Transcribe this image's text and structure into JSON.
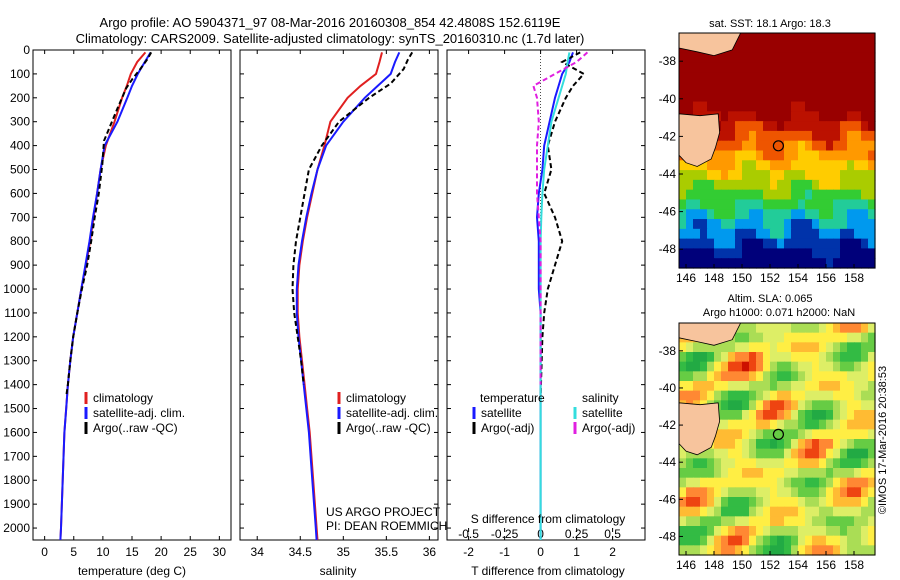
{
  "header": {
    "line1": "Argo profile: AO 5904371_97 08-Mar-2016 20160308_854 42.4808S 152.6119E",
    "line2": "Climatology: CARS2009. Satellite-adjusted climatology: synTS_20160310.nc (1.7d later)"
  },
  "chart_data": [
    {
      "type": "line",
      "name": "temperature-panel",
      "xlabel": "temperature (deg C)",
      "xlim": [
        -2,
        32
      ],
      "ylim": [
        2050,
        0
      ],
      "xticks": [
        0,
        5,
        10,
        15,
        20,
        25,
        30
      ],
      "yticks": [
        0,
        100,
        200,
        300,
        400,
        500,
        600,
        700,
        800,
        900,
        1000,
        1100,
        1200,
        1300,
        1400,
        1500,
        1600,
        1700,
        1800,
        1900,
        2000
      ],
      "legend": [
        "climatology",
        "satellite-adj. clim.",
        "Argo(..raw -QC)"
      ],
      "series": [
        {
          "name": "climatology",
          "color": "#e02020",
          "style": "solid",
          "x": [
            17.3,
            15.9,
            14.8,
            14.1,
            13.3,
            12.0,
            10.5,
            9.6,
            9.0,
            8.4,
            7.8,
            7.1,
            6.3,
            5.6,
            4.9,
            4.4,
            4.0,
            3.7,
            3.4,
            3.1,
            2.8,
            2.7
          ],
          "y": [
            10,
            50,
            100,
            150,
            200,
            300,
            400,
            500,
            600,
            700,
            800,
            900,
            1000,
            1100,
            1200,
            1300,
            1400,
            1500,
            1600,
            1800,
            2000,
            2050
          ]
        },
        {
          "name": "satellite-adj. clim.",
          "color": "#1a1aff",
          "style": "solid",
          "x": [
            18.2,
            17.2,
            16.0,
            15.0,
            14.2,
            12.5,
            10.3,
            9.6,
            9.0,
            8.3,
            7.7,
            7.0,
            6.3,
            5.6,
            4.9,
            4.4,
            4.0,
            3.7,
            3.4,
            3.1,
            2.8,
            2.7
          ],
          "y": [
            10,
            50,
            100,
            150,
            200,
            300,
            400,
            500,
            600,
            700,
            800,
            900,
            1000,
            1100,
            1200,
            1300,
            1400,
            1500,
            1600,
            1800,
            2000,
            2050
          ]
        },
        {
          "name": "Argo(..raw -QC)",
          "color": "#000000",
          "style": "dashed",
          "x": [
            18.3,
            17.6,
            16.4,
            15.1,
            14.0,
            12.4,
            10.2,
            9.9,
            9.3,
            8.6,
            8.0,
            7.3,
            6.4,
            5.6,
            4.9,
            4.4,
            4.0,
            3.7
          ],
          "y": [
            10,
            40,
            80,
            120,
            160,
            250,
            380,
            480,
            600,
            700,
            800,
            900,
            1000,
            1100,
            1200,
            1300,
            1400,
            1450
          ]
        }
      ]
    },
    {
      "type": "line",
      "name": "salinity-panel",
      "xlabel": "salinity",
      "xlim": [
        33.8,
        36.1
      ],
      "ylim": [
        2050,
        0
      ],
      "xticks": [
        34,
        34.5,
        35,
        35.5,
        36
      ],
      "legend": [
        "climatology",
        "satellite-adj. clim.",
        "Argo(..raw -QC)"
      ],
      "annotation": [
        "US ARGO PROJECT",
        "PI: DEAN ROEMMICH"
      ],
      "series": [
        {
          "name": "climatology",
          "color": "#e02020",
          "style": "solid",
          "x": [
            35.45,
            35.42,
            35.38,
            35.2,
            35.05,
            34.85,
            34.78,
            34.7,
            34.64,
            34.58,
            34.53,
            34.49,
            34.47,
            34.47,
            34.49,
            34.52,
            34.55,
            34.58,
            34.61,
            34.65,
            34.69,
            34.7
          ],
          "y": [
            10,
            50,
            100,
            150,
            200,
            300,
            400,
            500,
            600,
            700,
            800,
            900,
            1000,
            1100,
            1200,
            1300,
            1400,
            1500,
            1600,
            1800,
            2000,
            2050
          ]
        },
        {
          "name": "satellite-adj. clim.",
          "color": "#1a1aff",
          "style": "solid",
          "x": [
            35.65,
            35.6,
            35.55,
            35.4,
            35.25,
            35.0,
            34.8,
            34.7,
            34.63,
            34.57,
            34.52,
            34.48,
            34.46,
            34.46,
            34.48,
            34.51,
            34.54,
            34.57,
            34.6,
            34.64,
            34.68,
            34.69
          ],
          "y": [
            10,
            50,
            100,
            150,
            200,
            300,
            400,
            500,
            600,
            700,
            800,
            900,
            1000,
            1100,
            1200,
            1300,
            1400,
            1500,
            1600,
            1800,
            2000,
            2050
          ]
        },
        {
          "name": "Argo(..raw -QC)",
          "color": "#000000",
          "style": "dashed",
          "x": [
            35.8,
            35.75,
            35.7,
            35.55,
            35.3,
            34.95,
            34.75,
            34.6,
            34.55,
            34.5,
            34.45,
            34.42,
            34.41,
            34.43,
            34.47,
            34.51,
            34.54
          ],
          "y": [
            10,
            40,
            80,
            140,
            200,
            300,
            400,
            500,
            600,
            700,
            800,
            900,
            1000,
            1100,
            1200,
            1300,
            1400
          ]
        }
      ]
    },
    {
      "type": "line",
      "name": "difference-panel",
      "xlabel": "T difference from climatology",
      "top_xlabel": "S difference from climatology",
      "xlim": [
        -2.6,
        2.9
      ],
      "ylim": [
        2050,
        0
      ],
      "xticks": [
        -2,
        -1,
        0,
        1,
        2
      ],
      "top_xticks": [
        "-0.5",
        "-0.25",
        "0",
        "0.25",
        "0.5"
      ],
      "legend": {
        "temperature_title": "temperature",
        "salinity_title": "salinity",
        "temperature_entries": [
          "satellite",
          "Argo(-adj)"
        ],
        "salinity_entries": [
          "satellite",
          "Argo(-adj)"
        ]
      },
      "series": [
        {
          "name": "temperature satellite",
          "color": "#1a1aff",
          "style": "solid",
          "x": [
            0.9,
            0.8,
            0.6,
            0.5,
            0.4,
            0.25,
            0.1,
            0.05,
            -0.05,
            -0.1,
            -0.05,
            -0.05,
            -0.05,
            0.0,
            0.0,
            0.0,
            0.0,
            0.0,
            0.0,
            0.0,
            0.0
          ],
          "y": [
            10,
            50,
            100,
            150,
            200,
            300,
            400,
            500,
            600,
            700,
            800,
            900,
            1000,
            1100,
            1200,
            1300,
            1400,
            1500,
            1700,
            1900,
            2050
          ]
        },
        {
          "name": "temperature Argo(-adj)",
          "color": "#000000",
          "style": "dashed",
          "x": [
            1.1,
            0.6,
            1.2,
            0.9,
            0.7,
            0.4,
            0.2,
            0.3,
            0.1,
            0.4,
            0.6,
            0.4,
            0.2,
            0.1,
            0.05,
            0.0
          ],
          "y": [
            10,
            50,
            100,
            150,
            200,
            300,
            400,
            500,
            600,
            700,
            800,
            900,
            1000,
            1100,
            1200,
            1450
          ]
        },
        {
          "name": "salinity satellite",
          "color": "#33dddd",
          "style": "solid",
          "x": [
            0.8,
            0.75,
            0.7,
            0.6,
            0.5,
            0.3,
            0.2,
            0.1,
            0.05,
            0.02,
            0.0,
            0.0,
            0.0,
            0.0,
            0.0,
            0.0,
            0.0,
            0.0,
            0.0
          ],
          "y": [
            10,
            50,
            100,
            150,
            200,
            300,
            400,
            500,
            600,
            700,
            800,
            900,
            1000,
            1100,
            1200,
            1400,
            1600,
            1800,
            2050
          ]
        },
        {
          "name": "salinity Argo(-adj)",
          "color": "#e020e0",
          "style": "dashed",
          "x": [
            1.3,
            1.0,
            0.4,
            -0.2,
            -0.1,
            -0.05,
            -0.1,
            -0.1,
            -0.1,
            -0.05,
            0.0,
            0.0,
            0.0,
            0.0,
            0.0
          ],
          "y": [
            10,
            50,
            100,
            150,
            200,
            300,
            400,
            500,
            600,
            700,
            800,
            900,
            1000,
            1200,
            1400
          ]
        }
      ]
    },
    {
      "type": "heatmap",
      "name": "sst-map",
      "title": "sat. SST: 18.1 Argo: 18.3",
      "xlim": [
        145.5,
        159.5
      ],
      "ylim": [
        -49,
        -36.5
      ],
      "xticks": [
        146,
        148,
        150,
        152,
        154,
        156,
        158
      ],
      "yticks": [
        -38,
        -40,
        -42,
        -44,
        -46,
        -48
      ],
      "ytick_labels": [
        "-38",
        "-40",
        "-42",
        "-44",
        "-46",
        "-48"
      ],
      "argo_position": [
        152.6,
        -42.5
      ]
    },
    {
      "type": "heatmap",
      "name": "sla-map",
      "title": "Altim. SLA: 0.065",
      "subtitle": "Argo h1000: 0.071 h2000: NaN",
      "xlim": [
        145.5,
        159.5
      ],
      "ylim": [
        -49,
        -36.5
      ],
      "xticks": [
        146,
        148,
        150,
        152,
        154,
        156,
        158
      ],
      "yticks": [
        -38,
        -40,
        -42,
        -44,
        -46,
        -48
      ],
      "ytick_labels": [
        "-38",
        "-40",
        "-42",
        "-44",
        "-46",
        "-48"
      ],
      "argo_position": [
        152.6,
        -42.5
      ]
    }
  ],
  "credit": "©IMOS 17-Mar-2016 20:38:53"
}
